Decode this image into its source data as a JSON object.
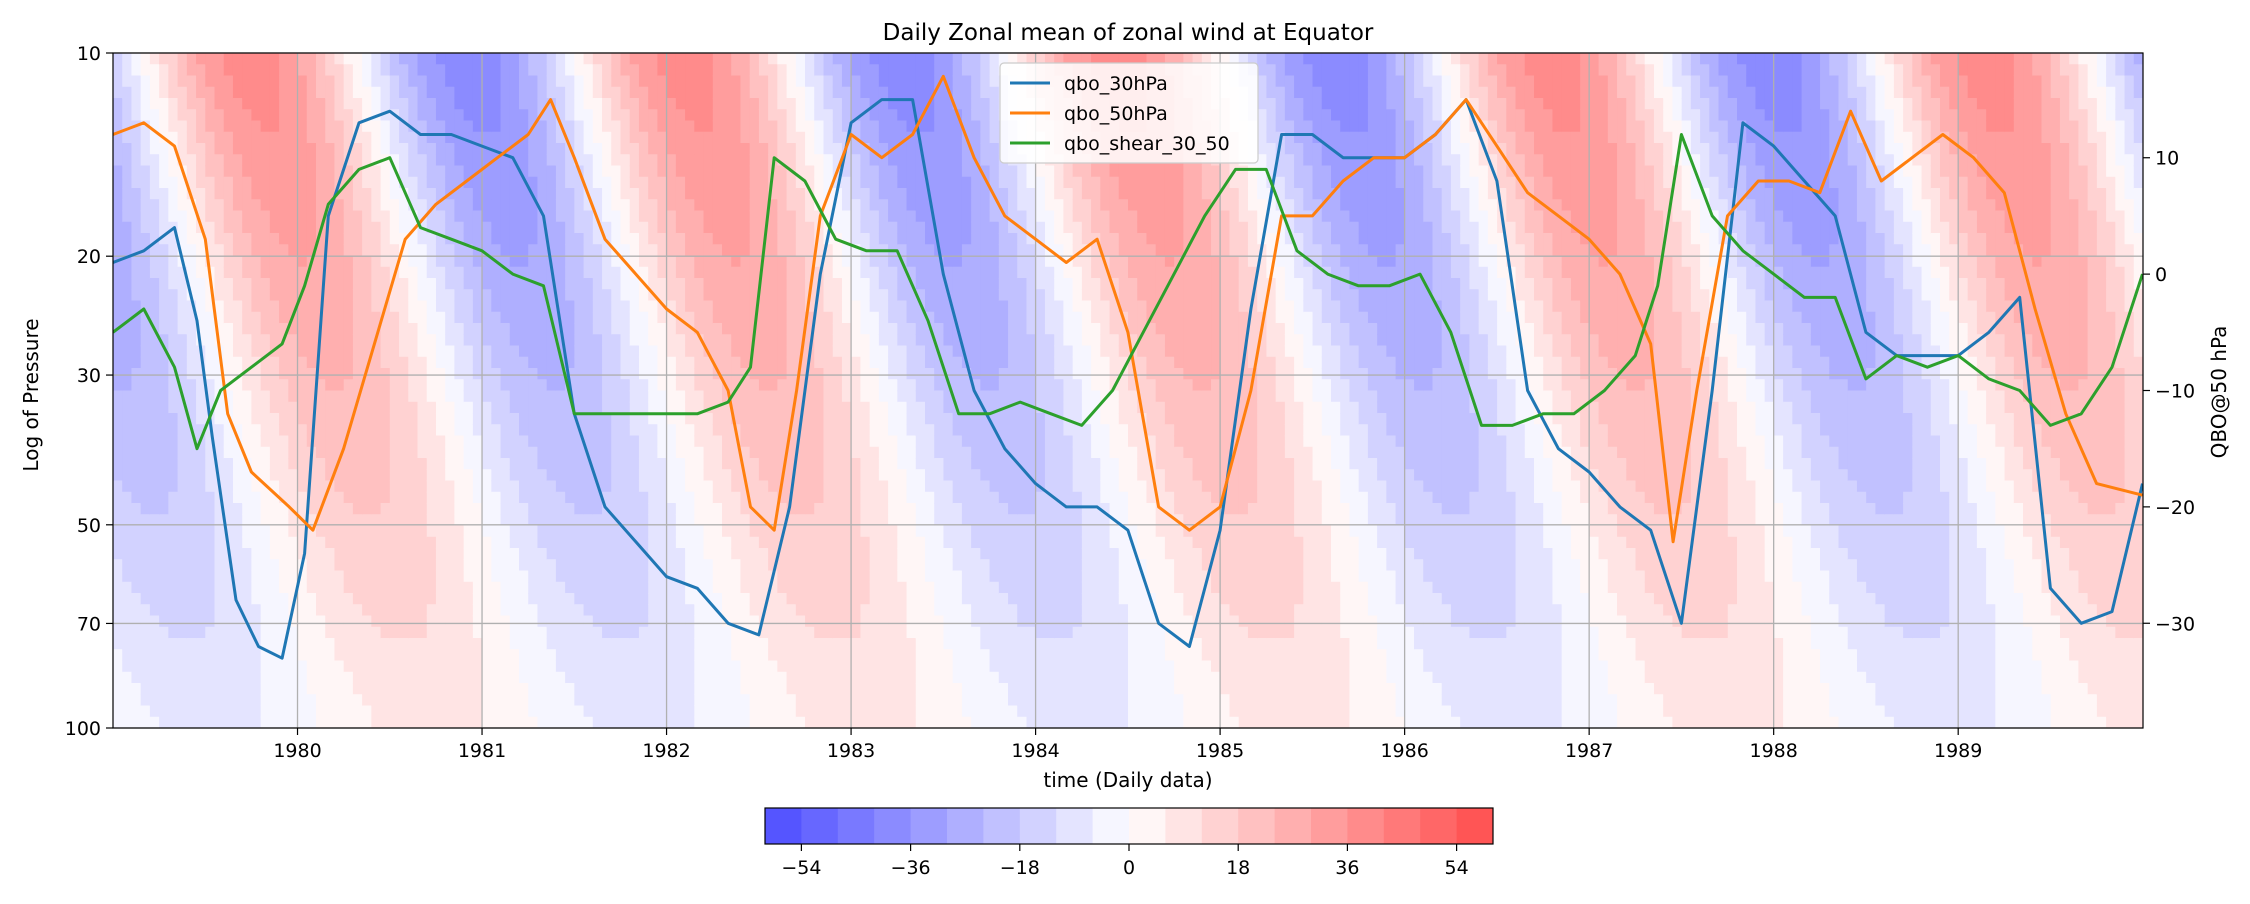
{
  "chart_data": {
    "type": "heatmap",
    "title": "Daily Zonal mean of zonal wind at Equator",
    "xlabel": "time (Daily data)",
    "ylabel": "Log of Pressure",
    "ylabel_right": "QBO@50 hPa",
    "x_range": [
      "1979-01-01",
      "1989-12-31"
    ],
    "x_ticks": [
      "1980",
      "1981",
      "1982",
      "1983",
      "1984",
      "1985",
      "1986",
      "1987",
      "1988",
      "1989"
    ],
    "y_ticks_left": [
      "10",
      "20",
      "30",
      "50",
      "70",
      "100"
    ],
    "y_ticks_right": [
      "10",
      "0",
      "−10",
      "−20",
      "−30"
    ],
    "y_range_left_hPa": [
      100,
      10
    ],
    "y_scale_left": "log",
    "y_range_right": [
      -39,
      19
    ],
    "grid": true,
    "legend_placement": "top-center",
    "colorbar": {
      "ticks": [
        "−54",
        "−36",
        "−18",
        "0",
        "18",
        "36",
        "54"
      ],
      "range": [
        -60,
        60
      ],
      "levels": 20,
      "cmap": "bwr"
    },
    "wind_contour_field": {
      "description_units": "m/s",
      "pressure_levels_hPa": [
        10,
        15,
        20,
        30,
        40,
        50,
        70,
        100
      ],
      "time_points": [
        "1979-01",
        "1979-07",
        "1980-01",
        "1980-07",
        "1981-01",
        "1981-07",
        "1982-01",
        "1982-07",
        "1983-01",
        "1983-07",
        "1984-01",
        "1984-07",
        "1985-01",
        "1985-07",
        "1986-01",
        "1986-07",
        "1987-01",
        "1987-07",
        "1988-01",
        "1988-07",
        "1989-01",
        "1989-07",
        "1989-12"
      ]
    },
    "series": [
      {
        "name": "qbo_30hPa",
        "color": "#1f77b4",
        "x": [
          "1979-01-01",
          "1979-03-01",
          "1979-05-01",
          "1979-06-15",
          "1979-07-15",
          "1979-09-01",
          "1979-10-15",
          "1979-12-01",
          "1980-01-15",
          "1980-03-01",
          "1980-05-01",
          "1980-07-01",
          "1980-09-01",
          "1980-11-01",
          "1981-01-01",
          "1981-03-01",
          "1981-05-01",
          "1981-07-01",
          "1981-09-01",
          "1981-11-01",
          "1982-01-01",
          "1982-03-01",
          "1982-05-01",
          "1982-07-01",
          "1982-09-01",
          "1982-11-01",
          "1983-01-01",
          "1983-03-01",
          "1983-05-01",
          "1983-07-01",
          "1983-09-01",
          "1983-11-01",
          "1984-01-01",
          "1984-03-01",
          "1984-05-01",
          "1984-07-01",
          "1984-09-01",
          "1984-11-01",
          "1985-01-01",
          "1985-03-01",
          "1985-05-01",
          "1985-07-01",
          "1985-09-01",
          "1985-11-01",
          "1986-01-01",
          "1986-03-01",
          "1986-05-01",
          "1986-07-01",
          "1986-09-01",
          "1986-11-01",
          "1987-01-01",
          "1987-03-01",
          "1987-05-01",
          "1987-07-01",
          "1987-09-01",
          "1987-11-01",
          "1988-01-01",
          "1988-03-01",
          "1988-05-01",
          "1988-07-01",
          "1988-09-01",
          "1988-11-01",
          "1989-01-01",
          "1989-03-01",
          "1989-05-01",
          "1989-07-01",
          "1989-09-01",
          "1989-11-01",
          "1989-12-31"
        ],
        "y": [
          1,
          2,
          4,
          -4,
          -14,
          -28,
          -32,
          -33,
          -24,
          5,
          13,
          14,
          12,
          12,
          11,
          10,
          5,
          -12,
          -20,
          -23,
          -26,
          -27,
          -30,
          -31,
          -20,
          0,
          13,
          15,
          15,
          0,
          -10,
          -15,
          -18,
          -20,
          -20,
          -22,
          -30,
          -32,
          -22,
          -3,
          12,
          12,
          10,
          10,
          10,
          12,
          15,
          8,
          -10,
          -15,
          -17,
          -20,
          -22,
          -30,
          -10,
          13,
          11,
          8,
          5,
          -5,
          -7,
          -7,
          -7,
          -5,
          -2,
          -27,
          -30,
          -29,
          -18
        ]
      },
      {
        "name": "qbo_50hPa",
        "color": "#ff7f0e",
        "x": [
          "1979-01-01",
          "1979-03-01",
          "1979-05-01",
          "1979-07-01",
          "1979-08-15",
          "1979-10-01",
          "1979-12-15",
          "1980-02-01",
          "1980-04-01",
          "1980-06-01",
          "1980-08-01",
          "1980-10-01",
          "1980-12-01",
          "1981-02-01",
          "1981-04-01",
          "1981-05-15",
          "1981-07-01",
          "1981-09-01",
          "1981-11-01",
          "1982-01-01",
          "1982-03-01",
          "1982-05-01",
          "1982-06-15",
          "1982-08-01",
          "1982-09-15",
          "1982-11-01",
          "1983-01-01",
          "1983-03-01",
          "1983-05-01",
          "1983-07-01",
          "1983-09-01",
          "1983-11-01",
          "1984-01-01",
          "1984-03-01",
          "1984-05-01",
          "1984-07-01",
          "1984-09-01",
          "1984-11-01",
          "1985-01-01",
          "1985-03-01",
          "1985-05-01",
          "1985-07-01",
          "1985-09-01",
          "1985-11-01",
          "1986-01-01",
          "1986-03-01",
          "1986-05-01",
          "1986-07-01",
          "1986-09-01",
          "1986-11-01",
          "1987-01-01",
          "1987-03-01",
          "1987-05-01",
          "1987-06-15",
          "1987-08-01",
          "1987-10-01",
          "1987-12-01",
          "1988-02-01",
          "1988-04-01",
          "1988-06-01",
          "1988-08-01",
          "1988-10-01",
          "1988-12-01",
          "1989-02-01",
          "1989-04-01",
          "1989-06-01",
          "1989-08-01",
          "1989-10-01",
          "1989-12-31"
        ],
        "y": [
          12,
          13,
          11,
          3,
          -12,
          -17,
          -20,
          -22,
          -15,
          -6,
          3,
          6,
          8,
          10,
          12,
          15,
          10,
          3,
          0,
          -3,
          -5,
          -10,
          -20,
          -22,
          -10,
          5,
          12,
          10,
          12,
          17,
          10,
          5,
          3,
          1,
          3,
          -5,
          -20,
          -22,
          -20,
          -10,
          5,
          5,
          8,
          10,
          10,
          12,
          15,
          11,
          7,
          5,
          3,
          0,
          -6,
          -23,
          -10,
          5,
          8,
          8,
          7,
          14,
          8,
          10,
          12,
          10,
          7,
          -3,
          -12,
          -18,
          -19
        ]
      },
      {
        "name": "qbo_shear_30_50",
        "color": "#2ca02c",
        "x": [
          "1979-01-01",
          "1979-03-01",
          "1979-05-01",
          "1979-06-15",
          "1979-08-01",
          "1979-10-01",
          "1979-12-01",
          "1980-01-15",
          "1980-03-01",
          "1980-05-01",
          "1980-07-01",
          "1980-09-01",
          "1980-11-01",
          "1981-01-01",
          "1981-03-01",
          "1981-05-01",
          "1981-07-01",
          "1981-09-01",
          "1981-11-01",
          "1982-01-01",
          "1982-03-01",
          "1982-05-01",
          "1982-06-15",
          "1982-08-01",
          "1982-10-01",
          "1982-12-01",
          "1983-02-01",
          "1983-04-01",
          "1983-06-01",
          "1983-08-01",
          "1983-10-01",
          "1983-12-01",
          "1984-02-01",
          "1984-04-01",
          "1984-06-01",
          "1984-08-01",
          "1984-10-01",
          "1984-12-01",
          "1985-02-01",
          "1985-04-01",
          "1985-06-01",
          "1985-08-01",
          "1985-10-01",
          "1985-12-01",
          "1986-02-01",
          "1986-04-01",
          "1986-06-01",
          "1986-08-01",
          "1986-10-01",
          "1986-12-01",
          "1987-02-01",
          "1987-04-01",
          "1987-05-15",
          "1987-07-01",
          "1987-09-01",
          "1987-11-01",
          "1988-01-01",
          "1988-03-01",
          "1988-05-01",
          "1988-07-01",
          "1988-09-01",
          "1988-11-01",
          "1989-01-01",
          "1989-03-01",
          "1989-05-01",
          "1989-07-01",
          "1989-09-01",
          "1989-11-01",
          "1989-12-31"
        ],
        "y": [
          -5,
          -3,
          -8,
          -15,
          -10,
          -8,
          -6,
          -1,
          6,
          9,
          10,
          4,
          3,
          2,
          0,
          -1,
          -12,
          -12,
          -12,
          -12,
          -12,
          -11,
          -8,
          10,
          8,
          3,
          2,
          2,
          -4,
          -12,
          -12,
          -11,
          -12,
          -13,
          -10,
          -5,
          0,
          5,
          9,
          9,
          2,
          0,
          -1,
          -1,
          0,
          -5,
          -13,
          -13,
          -12,
          -12,
          -10,
          -7,
          -1,
          12,
          5,
          2,
          0,
          -2,
          -2,
          -9,
          -7,
          -8,
          -7,
          -9,
          -10,
          -13,
          -12,
          -8,
          0
        ]
      }
    ]
  }
}
